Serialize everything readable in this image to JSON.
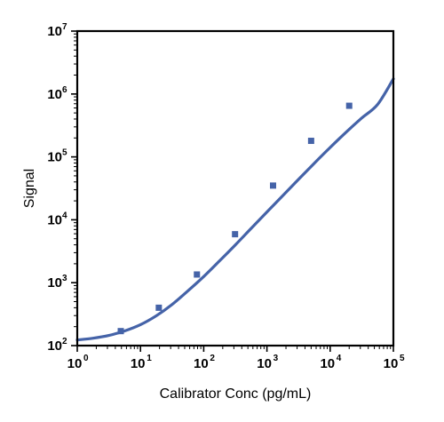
{
  "chart_data": {
    "type": "scatter",
    "title": "",
    "xlabel": "Calibrator Conc (pg/mL)",
    "ylabel": "Signal",
    "x_scale": "log",
    "y_scale": "log",
    "xlim": [
      1,
      100000
    ],
    "ylim": [
      100,
      10000000
    ],
    "grid": false,
    "legend": "none",
    "x_ticks": [
      {
        "base": "10",
        "exp": "0"
      },
      {
        "base": "10",
        "exp": "1"
      },
      {
        "base": "10",
        "exp": "2"
      },
      {
        "base": "10",
        "exp": "3"
      },
      {
        "base": "10",
        "exp": "4"
      },
      {
        "base": "10",
        "exp": "5"
      }
    ],
    "y_ticks": [
      {
        "base": "10",
        "exp": "2"
      },
      {
        "base": "10",
        "exp": "3"
      },
      {
        "base": "10",
        "exp": "4"
      },
      {
        "base": "10",
        "exp": "5"
      },
      {
        "base": "10",
        "exp": "6"
      },
      {
        "base": "10",
        "exp": "7"
      }
    ],
    "points": {
      "x": [
        4.88,
        19.5,
        78.1,
        313,
        1250,
        5000,
        20000
      ],
      "y": [
        170,
        400,
        1350,
        5900,
        35000,
        180000,
        650000
      ]
    },
    "fit_curve": {
      "x": [
        1,
        1.78,
        3.16,
        5.62,
        10,
        17.8,
        31.6,
        56.2,
        100,
        178,
        316,
        562,
        1000,
        1780,
        3160,
        5620,
        10000,
        17800,
        31600,
        56200,
        100000
      ],
      "y": [
        123,
        131,
        145,
        171,
        215,
        298,
        450,
        740,
        1250,
        2220,
        3980,
        7290,
        13300,
        24200,
        44000,
        79300,
        141000,
        246000,
        415000,
        680000,
        1740000
      ]
    },
    "color": "#4563a8"
  }
}
